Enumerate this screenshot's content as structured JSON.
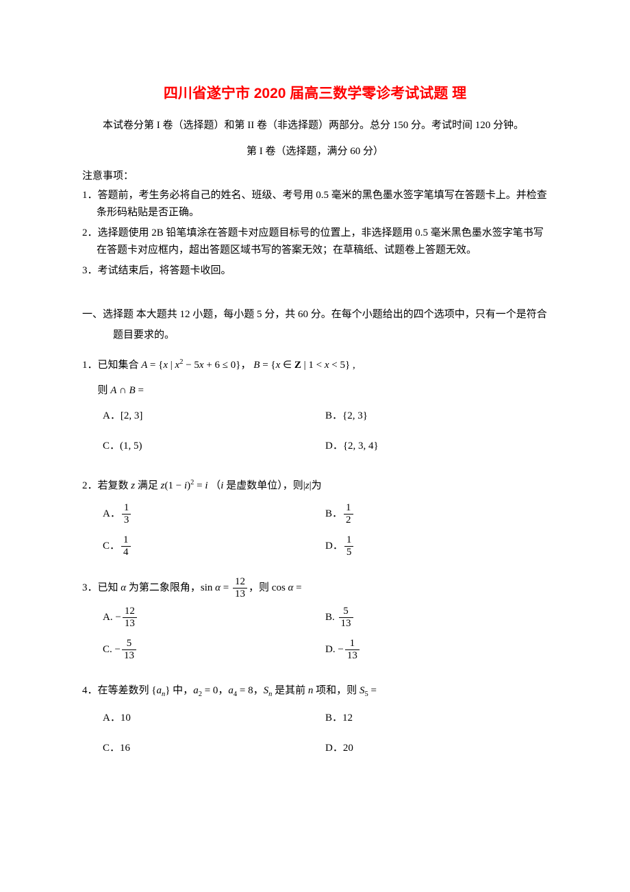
{
  "title": "四川省遂宁市 2020 届高三数学零诊考试试题 理",
  "intro": "本试卷分第 I 卷（选择题）和第 II 卷（非选择题）两部分。总分 150 分。考试时间 120 分钟。",
  "partHeader": "第 I 卷（选择题，满分 60 分）",
  "noticeHeader": "注意事项：",
  "notices": [
    "1．答题前，考生务必将自己的姓名、班级、考号用 0.5 毫米的黑色墨水签字笔填写在答题卡上。并检查条形码粘贴是否正确。",
    "2．选择题使用 2B 铅笔填涂在答题卡对应题目标号的位置上，非选择题用 0.5 毫米黑色墨水签字笔书写在答题卡对应框内，超出答题区域书写的答案无效；在草稿纸、试题卷上答题无效。",
    "3．考试结束后，将答题卡收回。"
  ],
  "sectionHeader": "一、选择题 本大题共 12 小题，每小题 5 分，共 60 分。在每个小题给出的四个选项中，只有一个是符合题目要求的。",
  "q1": {
    "stem_prefix": "1．已知集合 ",
    "stem_mid": "，",
    "stem_suffix": " ,",
    "then": "则 ",
    "A": "A．",
    "B": "B．",
    "C": "C．",
    "D": "D．"
  },
  "q2": {
    "stem_prefix": "2．若复数 ",
    "stem_mid1": " 满足 ",
    "stem_mid2": "（",
    "stem_mid3": " 是虚数单位），则",
    "stem_suffix": "为",
    "A": "A．",
    "B": "B．",
    "C": "C．",
    "D": "D．"
  },
  "q3": {
    "stem_prefix": "3．已知 ",
    "stem_mid1": " 为第二象限角，",
    "stem_mid2": "，则 ",
    "A": "A. ",
    "B": "B. ",
    "C": "C. ",
    "D": "D. "
  },
  "q4": {
    "stem_prefix": "4．在等差数列 ",
    "stem_mid1": " 中，",
    "stem_mid2": "，",
    "stem_mid3": "，",
    "stem_mid4": " 是其前 ",
    "stem_mid5": " 项和，则 ",
    "A": "A．",
    "Av": "10",
    "B": "B．",
    "Bv": "12",
    "C": "C．",
    "Cv": "16",
    "D": "D．",
    "Dv": "20"
  }
}
